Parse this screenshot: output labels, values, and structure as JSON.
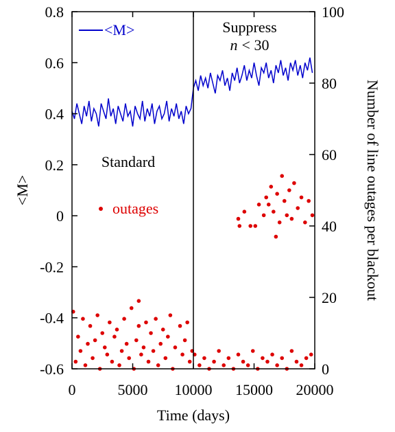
{
  "chart_data": {
    "type": "line-scatter",
    "x_label": "Time (days)",
    "y_label": "<M>",
    "y2_label": "Number of line outages per blackout",
    "xlim": [
      0,
      20000
    ],
    "xticks": [
      0,
      5000,
      10000,
      15000,
      20000
    ],
    "ylim": [
      -0.6,
      0.8
    ],
    "yticks": [
      -0.6,
      -0.4,
      -0.2,
      0,
      0.2,
      0.4,
      0.6,
      0.8
    ],
    "y2lim": [
      0,
      100
    ],
    "y2ticks": [
      0,
      20,
      40,
      60,
      80,
      100
    ],
    "vline": 10000,
    "annotations": [
      "Standard",
      "Suppress"
    ],
    "annotation_italic": [
      "n",
      "< 30"
    ],
    "series": [
      {
        "name": "<M>",
        "type": "line",
        "color": "#0000cc",
        "x": [
          0,
          200,
          400,
          600,
          800,
          1000,
          1200,
          1400,
          1600,
          1800,
          2000,
          2200,
          2400,
          2600,
          2800,
          3000,
          3200,
          3400,
          3600,
          3800,
          4000,
          4200,
          4400,
          4600,
          4800,
          5000,
          5200,
          5400,
          5600,
          5800,
          6000,
          6200,
          6400,
          6600,
          6800,
          7000,
          7200,
          7400,
          7600,
          7800,
          8000,
          8200,
          8400,
          8600,
          8800,
          9000,
          9200,
          9400,
          9600,
          9800,
          10000,
          10200,
          10400,
          10600,
          10800,
          11000,
          11200,
          11400,
          11600,
          11800,
          12000,
          12200,
          12400,
          12600,
          12800,
          13000,
          13200,
          13400,
          13600,
          13800,
          14000,
          14200,
          14400,
          14600,
          14800,
          15000,
          15200,
          15400,
          15600,
          15800,
          16000,
          16200,
          16400,
          16600,
          16800,
          17000,
          17200,
          17400,
          17600,
          17800,
          18000,
          18200,
          18400,
          18600,
          18800,
          19000,
          19200,
          19400,
          19600,
          19800
        ],
        "values": [
          0.41,
          0.38,
          0.44,
          0.4,
          0.36,
          0.43,
          0.39,
          0.45,
          0.37,
          0.42,
          0.4,
          0.35,
          0.44,
          0.41,
          0.38,
          0.46,
          0.39,
          0.42,
          0.36,
          0.43,
          0.4,
          0.37,
          0.44,
          0.39,
          0.41,
          0.35,
          0.43,
          0.4,
          0.38,
          0.45,
          0.37,
          0.42,
          0.39,
          0.44,
          0.36,
          0.41,
          0.43,
          0.38,
          0.4,
          0.45,
          0.37,
          0.42,
          0.39,
          0.44,
          0.38,
          0.41,
          0.36,
          0.43,
          0.4,
          0.42,
          0.5,
          0.53,
          0.49,
          0.55,
          0.51,
          0.54,
          0.5,
          0.56,
          0.52,
          0.48,
          0.55,
          0.53,
          0.57,
          0.51,
          0.54,
          0.49,
          0.56,
          0.53,
          0.58,
          0.52,
          0.55,
          0.59,
          0.53,
          0.57,
          0.54,
          0.6,
          0.55,
          0.51,
          0.58,
          0.56,
          0.6,
          0.54,
          0.57,
          0.52,
          0.59,
          0.56,
          0.61,
          0.55,
          0.58,
          0.53,
          0.6,
          0.57,
          0.61,
          0.55,
          0.59,
          0.54,
          0.6,
          0.57,
          0.62,
          0.56
        ]
      },
      {
        "name": "outages",
        "type": "scatter",
        "axis": "y2",
        "color": "#dd0000",
        "x": [
          100,
          300,
          500,
          700,
          900,
          1100,
          1300,
          1500,
          1700,
          1900,
          2100,
          2300,
          2500,
          2700,
          2900,
          3100,
          3300,
          3500,
          3700,
          3900,
          4100,
          4300,
          4500,
          4700,
          4900,
          5100,
          5300,
          5500,
          5700,
          5900,
          6100,
          6300,
          6500,
          6700,
          6900,
          7100,
          7300,
          7500,
          7700,
          7900,
          8100,
          8300,
          8500,
          8900,
          9100,
          9300,
          9500,
          9700,
          9900,
          5500,
          10100,
          10500,
          10900,
          11300,
          11700,
          12100,
          12500,
          12900,
          13300,
          13700,
          14100,
          14500,
          14900,
          15300,
          15700,
          16100,
          16500,
          16900,
          17300,
          17700,
          18100,
          18500,
          18900,
          19300,
          19700,
          13700,
          13800,
          14200,
          14700,
          15100,
          15400,
          15800,
          16000,
          16200,
          16400,
          16600,
          16800,
          16900,
          17100,
          17300,
          17500,
          17700,
          17900,
          18100,
          18300,
          18600,
          18900,
          19200,
          19500,
          19800
        ],
        "values": [
          16,
          2,
          9,
          5,
          14,
          1,
          7,
          12,
          3,
          8,
          15,
          0,
          10,
          6,
          4,
          13,
          2,
          9,
          11,
          1,
          5,
          14,
          7,
          3,
          17,
          0,
          8,
          12,
          4,
          6,
          13,
          2,
          10,
          5,
          14,
          1,
          7,
          11,
          3,
          9,
          15,
          0,
          6,
          12,
          4,
          8,
          13,
          2,
          5,
          19,
          4,
          1,
          3,
          0,
          2,
          5,
          1,
          3,
          0,
          4,
          2,
          1,
          5,
          0,
          3,
          2,
          4,
          1,
          3,
          0,
          5,
          2,
          1,
          3,
          4,
          42,
          40,
          44,
          40,
          40,
          46,
          43,
          48,
          46,
          51,
          44,
          37,
          49,
          41,
          54,
          47,
          43,
          50,
          42,
          52,
          45,
          48,
          41,
          47,
          43
        ]
      }
    ]
  }
}
